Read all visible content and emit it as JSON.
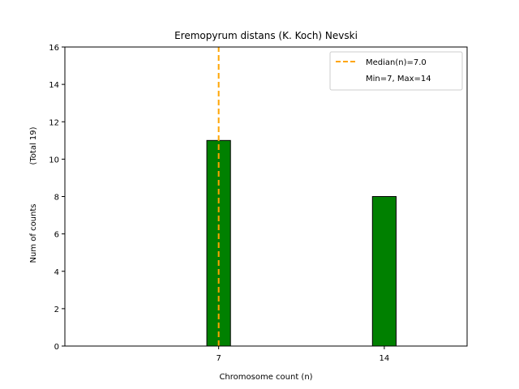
{
  "chart_data": {
    "type": "bar",
    "title": "Eremopyrum distans (K. Koch) Nevski",
    "xlabel": "Chromosome count (n)",
    "ylabel": "Num of counts",
    "ylabel_total": "(Total 19)",
    "categories": [
      7,
      14
    ],
    "values": [
      11,
      8
    ],
    "xlim": [
      0.5,
      17.5
    ],
    "ylim": [
      0,
      16
    ],
    "yticks": [
      0,
      2,
      4,
      6,
      8,
      10,
      12,
      14,
      16
    ],
    "xticks": [
      7,
      14
    ],
    "bar_width": 1,
    "bar_color": "#008000",
    "bar_edge_color": "#000000",
    "median": 7.0,
    "median_color": "#ffa500",
    "legend": {
      "placement": "upper-right",
      "entries": [
        "Median(n)=7.0",
        "Min=7, Max=14"
      ]
    },
    "grid": false
  }
}
